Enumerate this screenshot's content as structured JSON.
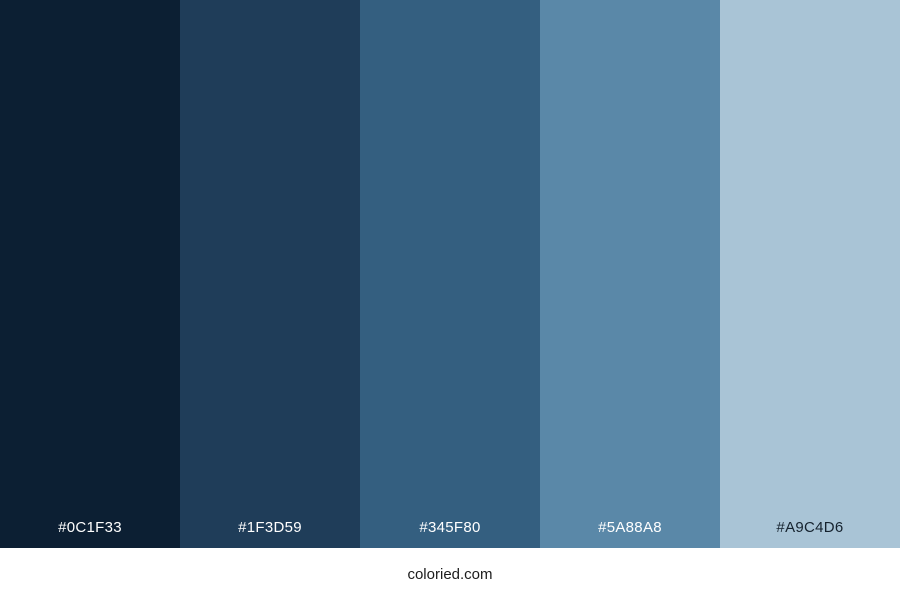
{
  "palette": {
    "swatches": [
      {
        "hex": "#0C1F33",
        "label": "#0C1F33",
        "label_color": "#ffffff"
      },
      {
        "hex": "#1F3D59",
        "label": "#1F3D59",
        "label_color": "#ffffff"
      },
      {
        "hex": "#345F80",
        "label": "#345F80",
        "label_color": "#ffffff"
      },
      {
        "hex": "#5A88A8",
        "label": "#5A88A8",
        "label_color": "#ffffff"
      },
      {
        "hex": "#A9C4D6",
        "label": "#A9C4D6",
        "label_color": "#15222e"
      }
    ]
  },
  "footer": {
    "site_label": "coloried.com",
    "text_color": "#1c1c1c",
    "background": "#ffffff"
  }
}
